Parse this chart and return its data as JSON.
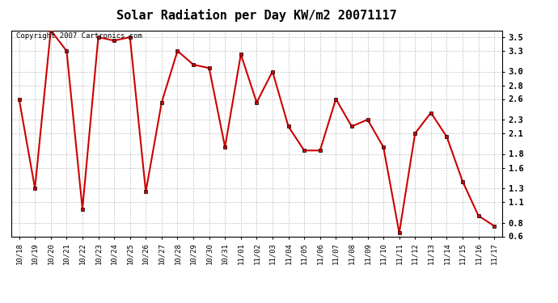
{
  "title": "Solar Radiation per Day KW/m2 20071117",
  "copyright_text": "Copyright 2007 Cartronics.com",
  "dates": [
    "10/18",
    "10/19",
    "10/20",
    "10/21",
    "10/22",
    "10/23",
    "10/24",
    "10/25",
    "10/26",
    "10/27",
    "10/28",
    "10/29",
    "10/30",
    "10/31",
    "11/01",
    "11/02",
    "11/03",
    "11/04",
    "11/05",
    "11/06",
    "11/07",
    "11/08",
    "11/09",
    "11/10",
    "11/11",
    "11/12",
    "11/13",
    "11/14",
    "11/15",
    "11/16",
    "11/17"
  ],
  "values": [
    2.6,
    1.3,
    3.6,
    3.3,
    1.0,
    3.5,
    3.45,
    3.5,
    1.25,
    2.55,
    3.3,
    3.1,
    3.05,
    1.9,
    3.25,
    2.55,
    3.0,
    2.2,
    1.85,
    1.85,
    2.6,
    2.2,
    2.3,
    1.9,
    0.65,
    2.1,
    2.4,
    2.05,
    1.4,
    0.9,
    0.75
  ],
  "ylim": [
    0.6,
    3.6
  ],
  "yticks": [
    0.6,
    0.8,
    1.1,
    1.3,
    1.6,
    1.8,
    2.1,
    2.3,
    2.6,
    2.8,
    3.0,
    3.3,
    3.5
  ],
  "line_color": "#cc0000",
  "marker": "s",
  "marker_size": 2.5,
  "line_width": 1.5,
  "bg_color": "#ffffff",
  "plot_bg_color": "#ffffff",
  "grid_color": "#c0c0c0",
  "title_fontsize": 11,
  "tick_fontsize": 6.5,
  "copyright_fontsize": 6.5
}
